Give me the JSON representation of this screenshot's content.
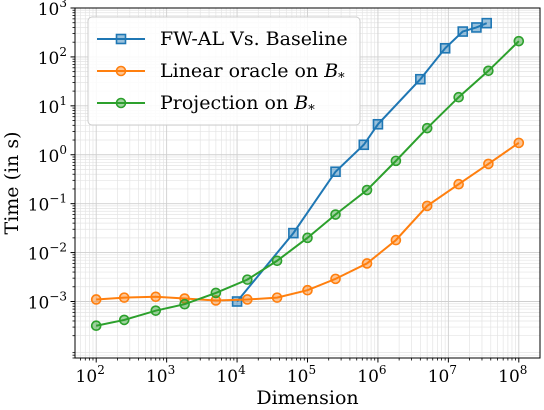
{
  "chart_data": {
    "type": "line",
    "xlabel": "Dimension",
    "ylabel": "Time (in s)",
    "xscale": "log",
    "yscale": "log",
    "xlim": [
      50,
      200000000
    ],
    "ylim": [
      7e-05,
      1000
    ],
    "grid": true,
    "legend_position": "top-left",
    "x_ticks": [
      {
        "value": 100,
        "base": "10",
        "exp": "2"
      },
      {
        "value": 1000,
        "base": "10",
        "exp": "3"
      },
      {
        "value": 10000,
        "base": "10",
        "exp": "4"
      },
      {
        "value": 100000,
        "base": "10",
        "exp": "5"
      },
      {
        "value": 1000000,
        "base": "10",
        "exp": "6"
      },
      {
        "value": 10000000,
        "base": "10",
        "exp": "7"
      },
      {
        "value": 100000000,
        "base": "10",
        "exp": "8"
      }
    ],
    "y_ticks": [
      {
        "value": 0.001,
        "base": "10",
        "exp": "−3"
      },
      {
        "value": 0.01,
        "base": "10",
        "exp": "−2"
      },
      {
        "value": 0.1,
        "base": "10",
        "exp": "−1"
      },
      {
        "value": 1,
        "base": "10",
        "exp": "0"
      },
      {
        "value": 10,
        "base": "10",
        "exp": "1"
      },
      {
        "value": 100,
        "base": "10",
        "exp": "2"
      },
      {
        "value": 1000,
        "base": "10",
        "exp": "3"
      }
    ],
    "series": [
      {
        "name": "FW-AL Vs. Baseline",
        "color": "#1f77b4",
        "marker": "square",
        "x": [
          10000,
          63000,
          250000,
          630000,
          1000000,
          4000000,
          9000000,
          16000000,
          25000000,
          35000000
        ],
        "y": [
          0.001,
          0.025,
          0.45,
          1.6,
          4.2,
          35,
          150,
          330,
          400,
          490
        ]
      },
      {
        "name": "Linear oracle on ",
        "name_sub": "B",
        "name_star": "*",
        "color": "#ff7f0e",
        "marker": "circle",
        "x": [
          100,
          250,
          700,
          1800,
          5000,
          14000,
          37000,
          100000,
          250000,
          700000,
          1800000,
          5000000,
          14000000,
          37000000,
          100000000
        ],
        "y": [
          0.0011,
          0.0012,
          0.00125,
          0.00115,
          0.00105,
          0.0011,
          0.0012,
          0.0017,
          0.0029,
          0.006,
          0.018,
          0.09,
          0.25,
          0.65,
          1.75
        ]
      },
      {
        "name": "Projection on ",
        "name_sub": "B",
        "name_star": "*",
        "color": "#2ca02c",
        "marker": "circle",
        "x": [
          100,
          250,
          700,
          1800,
          5000,
          14000,
          37000,
          100000,
          250000,
          700000,
          1800000,
          5000000,
          14000000,
          37000000,
          100000000
        ],
        "y": [
          0.00032,
          0.00042,
          0.00065,
          0.00088,
          0.0015,
          0.0028,
          0.0068,
          0.02,
          0.06,
          0.19,
          0.75,
          3.5,
          15,
          52,
          210
        ]
      }
    ]
  }
}
